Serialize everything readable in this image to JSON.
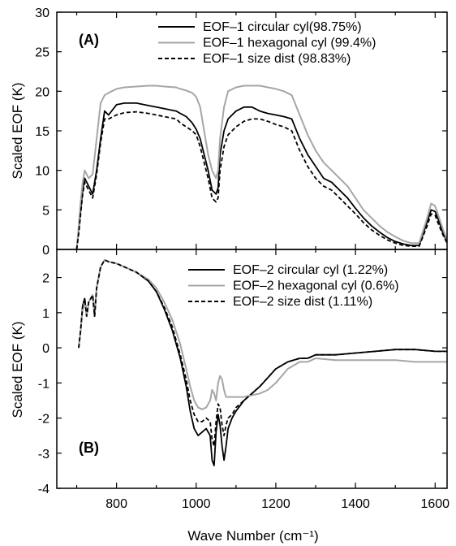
{
  "chart_data": [
    {
      "type": "line",
      "panel_label": "(A)",
      "xlabel": "",
      "ylabel": "Scaled EOF (K)",
      "xlim": [
        650,
        1630
      ],
      "ylim": [
        0,
        30
      ],
      "yticks": [
        "0",
        "5",
        "10",
        "15",
        "20",
        "25",
        "30"
      ],
      "legend_position": "top-right",
      "series": [
        {
          "name": "EOF–1 circular cyl(98.75%)",
          "color": "#000000",
          "dash": "solid",
          "x": [
            700,
            705,
            710,
            715,
            720,
            730,
            740,
            750,
            760,
            770,
            780,
            800,
            820,
            850,
            880,
            900,
            920,
            950,
            960,
            975,
            990,
            1000,
            1010,
            1020,
            1030,
            1040,
            1050,
            1055,
            1060,
            1070,
            1080,
            1100,
            1120,
            1140,
            1160,
            1180,
            1200,
            1220,
            1240,
            1260,
            1280,
            1300,
            1320,
            1340,
            1360,
            1380,
            1400,
            1420,
            1440,
            1460,
            1480,
            1500,
            1520,
            1540,
            1560,
            1580,
            1590,
            1600,
            1610,
            1620,
            1630
          ],
          "y": [
            0,
            2.5,
            5,
            7.5,
            9,
            8,
            7,
            10,
            14,
            17.5,
            17,
            18.3,
            18.5,
            18.5,
            18.2,
            18,
            17.8,
            17.5,
            17.2,
            16.8,
            16,
            15.2,
            14,
            12,
            10,
            7.5,
            7,
            7.8,
            12,
            15,
            16.5,
            17.5,
            18,
            18,
            17.5,
            17.2,
            17,
            16.8,
            16.5,
            14,
            12,
            10.5,
            9,
            8.5,
            7.5,
            6.5,
            5.2,
            4,
            3,
            2.2,
            1.5,
            1,
            0.7,
            0.5,
            0.5,
            3.5,
            5,
            4.8,
            3.5,
            2,
            1
          ]
        },
        {
          "name": "EOF–1 hexagonal cyl (99.4%)",
          "color": "#a6a6a6",
          "dash": "solid",
          "x": [
            700,
            705,
            710,
            715,
            720,
            730,
            740,
            750,
            760,
            770,
            780,
            800,
            820,
            850,
            880,
            900,
            920,
            950,
            960,
            975,
            990,
            1000,
            1010,
            1020,
            1030,
            1040,
            1050,
            1055,
            1060,
            1070,
            1080,
            1100,
            1120,
            1140,
            1160,
            1180,
            1200,
            1220,
            1240,
            1260,
            1280,
            1300,
            1320,
            1340,
            1360,
            1380,
            1400,
            1420,
            1440,
            1460,
            1480,
            1500,
            1520,
            1540,
            1560,
            1580,
            1590,
            1600,
            1610,
            1620,
            1630
          ],
          "y": [
            0,
            3,
            6,
            8.5,
            10,
            9,
            9.5,
            14,
            18.5,
            19.5,
            19.8,
            20.3,
            20.5,
            20.6,
            20.7,
            20.7,
            20.6,
            20.5,
            20.3,
            20.1,
            19.8,
            19.3,
            18,
            15,
            12,
            10,
            9,
            10,
            14,
            18,
            20,
            20.5,
            20.7,
            20.7,
            20.7,
            20.5,
            20.3,
            20,
            19.5,
            17,
            14.5,
            12.5,
            11,
            10,
            9,
            8,
            6.5,
            5,
            4,
            3,
            2.2,
            1.6,
            1.1,
            0.8,
            0.8,
            4,
            5.8,
            5.5,
            4,
            2.5,
            1.2
          ]
        },
        {
          "name": "EOF–1 size dist (98.83%)",
          "color": "#000000",
          "dash": "dashed",
          "x": [
            700,
            705,
            710,
            715,
            720,
            730,
            740,
            750,
            760,
            770,
            780,
            800,
            820,
            850,
            880,
            900,
            920,
            950,
            960,
            975,
            990,
            1000,
            1010,
            1020,
            1030,
            1040,
            1050,
            1055,
            1060,
            1070,
            1080,
            1100,
            1120,
            1140,
            1160,
            1180,
            1200,
            1220,
            1240,
            1260,
            1280,
            1300,
            1320,
            1340,
            1360,
            1380,
            1400,
            1420,
            1440,
            1460,
            1480,
            1500,
            1520,
            1540,
            1560,
            1580,
            1590,
            1600,
            1610,
            1620,
            1630
          ],
          "y": [
            0,
            2,
            4.5,
            7,
            8.5,
            7.5,
            6.5,
            9.5,
            13.5,
            16.5,
            16.5,
            17,
            17.3,
            17.4,
            17.2,
            17,
            16.8,
            16.5,
            16,
            15.5,
            15,
            14.5,
            13,
            11,
            9,
            6.5,
            6,
            6.5,
            10,
            13,
            14.5,
            15.5,
            16.2,
            16.5,
            16.5,
            16.2,
            15.8,
            15.5,
            15,
            12.5,
            10.5,
            9,
            8,
            7.5,
            6.5,
            5.5,
            4.5,
            3.4,
            2.5,
            1.8,
            1.2,
            0.8,
            0.5,
            0.4,
            0.4,
            3,
            4.5,
            4.3,
            3,
            1.8,
            0.8
          ]
        }
      ]
    },
    {
      "type": "line",
      "panel_label": "(B)",
      "xlabel": "Wave Number (cm⁻¹)",
      "ylabel": "Scaled EOF (K)",
      "xlim": [
        650,
        1630
      ],
      "ylim": [
        -4,
        2.8
      ],
      "xticks": [
        "800",
        "1000",
        "1200",
        "1400",
        "1600"
      ],
      "yticks": [
        "-4",
        "-3",
        "-2",
        "-1",
        "0",
        "1",
        "2"
      ],
      "legend_position": "top-right",
      "series": [
        {
          "name": "EOF–2 circular cyl (1.22%)",
          "color": "#000000",
          "dash": "solid",
          "x": [
            705,
            710,
            715,
            720,
            725,
            730,
            740,
            745,
            750,
            760,
            770,
            780,
            800,
            820,
            850,
            880,
            900,
            920,
            940,
            960,
            975,
            985,
            995,
            1005,
            1015,
            1025,
            1035,
            1040,
            1045,
            1050,
            1055,
            1060,
            1065,
            1070,
            1075,
            1080,
            1090,
            1100,
            1120,
            1140,
            1160,
            1180,
            1200,
            1230,
            1260,
            1280,
            1300,
            1350,
            1400,
            1450,
            1500,
            1550,
            1600,
            1630
          ],
          "y": [
            0,
            0.5,
            1.2,
            1.4,
            0.9,
            1.3,
            1.5,
            0.9,
            1.7,
            2.3,
            2.5,
            2.45,
            2.4,
            2.3,
            2.15,
            1.9,
            1.6,
            1.1,
            0.5,
            -0.3,
            -1.1,
            -1.8,
            -2.3,
            -2.5,
            -2.4,
            -2.3,
            -2.5,
            -3.2,
            -3.35,
            -2.4,
            -1.9,
            -2.2,
            -2.8,
            -3.2,
            -2.8,
            -2.3,
            -2.0,
            -1.8,
            -1.5,
            -1.3,
            -1.1,
            -0.85,
            -0.6,
            -0.4,
            -0.3,
            -0.3,
            -0.2,
            -0.2,
            -0.15,
            -0.1,
            -0.05,
            -0.05,
            -0.1,
            -0.1
          ]
        },
        {
          "name": "EOF–2 hexagonal cyl (0.6%)",
          "color": "#a6a6a6",
          "dash": "solid",
          "x": [
            705,
            710,
            715,
            720,
            725,
            730,
            740,
            745,
            750,
            760,
            770,
            780,
            800,
            820,
            850,
            880,
            900,
            920,
            940,
            960,
            975,
            985,
            995,
            1005,
            1015,
            1025,
            1035,
            1040,
            1045,
            1050,
            1055,
            1060,
            1065,
            1070,
            1075,
            1080,
            1090,
            1100,
            1120,
            1140,
            1160,
            1180,
            1200,
            1230,
            1260,
            1280,
            1300,
            1350,
            1400,
            1450,
            1500,
            1550,
            1600,
            1630
          ],
          "y": [
            0,
            0.5,
            1.1,
            1.3,
            0.9,
            1.3,
            1.5,
            1.0,
            1.7,
            2.3,
            2.5,
            2.45,
            2.4,
            2.3,
            2.15,
            1.95,
            1.7,
            1.3,
            0.8,
            0.1,
            -0.6,
            -1.1,
            -1.5,
            -1.7,
            -1.75,
            -1.7,
            -1.5,
            -1.2,
            -1.3,
            -1.5,
            -1.0,
            -0.8,
            -0.9,
            -1.2,
            -1.4,
            -1.4,
            -1.4,
            -1.4,
            -1.4,
            -1.35,
            -1.3,
            -1.2,
            -1.0,
            -0.6,
            -0.4,
            -0.4,
            -0.3,
            -0.35,
            -0.35,
            -0.35,
            -0.35,
            -0.4,
            -0.4,
            -0.4
          ]
        },
        {
          "name": "EOF–2 size dist (1.11%)",
          "color": "#000000",
          "dash": "dashed",
          "x": [
            705,
            710,
            715,
            720,
            725,
            730,
            740,
            745,
            750,
            760,
            770,
            780,
            800,
            820,
            850,
            880,
            900,
            920,
            940,
            960,
            975,
            985,
            995,
            1005,
            1015,
            1025,
            1035,
            1040,
            1045,
            1050,
            1055,
            1060,
            1065,
            1070,
            1075,
            1080,
            1090,
            1100,
            1120,
            1140,
            1160,
            1180,
            1200,
            1230,
            1260,
            1280,
            1300,
            1350,
            1400,
            1450,
            1500,
            1550,
            1600,
            1630
          ],
          "y": [
            0,
            0.5,
            1.2,
            1.4,
            0.9,
            1.3,
            1.5,
            0.9,
            1.7,
            2.3,
            2.5,
            2.45,
            2.4,
            2.3,
            2.15,
            1.9,
            1.6,
            1.15,
            0.6,
            -0.2,
            -0.9,
            -1.5,
            -1.9,
            -2.1,
            -2.1,
            -2.0,
            -2.1,
            -2.6,
            -2.8,
            -2.1,
            -1.6,
            -1.7,
            -2.2,
            -2.5,
            -2.2,
            -2.0,
            -1.9,
            -1.7,
            -1.5,
            -1.3,
            -1.1,
            -0.85,
            -0.6,
            -0.4,
            -0.3,
            -0.3,
            -0.2,
            -0.2,
            -0.15,
            -0.1,
            -0.05,
            -0.05,
            -0.1,
            -0.1
          ]
        }
      ]
    }
  ]
}
